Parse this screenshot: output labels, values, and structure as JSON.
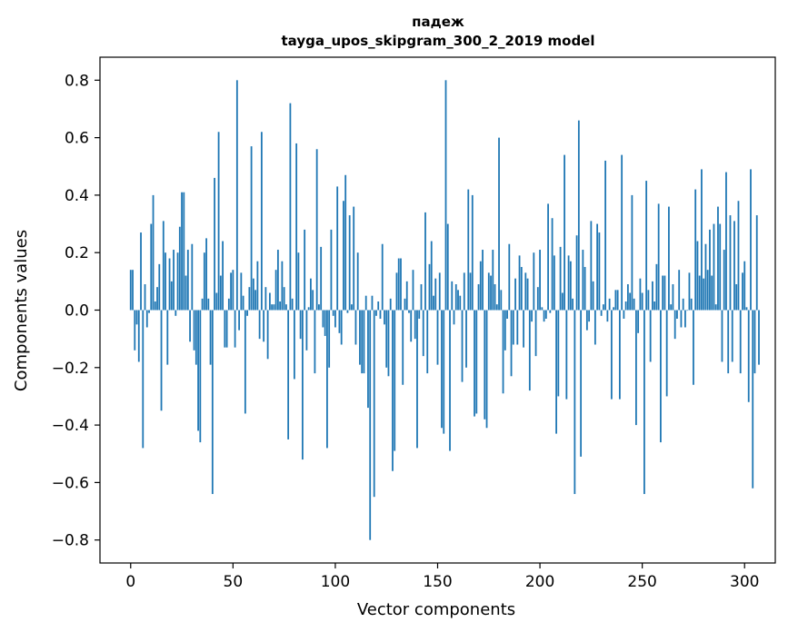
{
  "chart_data": {
    "type": "bar",
    "title": "падеж",
    "subtitle": "tayga_upos_skipgram_300_2_2019 model",
    "xlabel": "Vector components",
    "ylabel": "Components values",
    "xlim": [
      -15,
      315
    ],
    "ylim": [
      -0.88,
      0.88
    ],
    "xticks": [
      0,
      50,
      100,
      150,
      200,
      250,
      300
    ],
    "xtick_labels": [
      "0",
      "50",
      "100",
      "150",
      "200",
      "250",
      "300"
    ],
    "yticks": [
      -0.8,
      -0.6,
      -0.4,
      -0.2,
      0.0,
      0.2,
      0.4,
      0.6,
      0.8
    ],
    "ytick_labels": [
      "−0.8",
      "−0.6",
      "−0.4",
      "−0.2",
      "0.0",
      "0.2",
      "0.4",
      "0.6",
      "0.8"
    ],
    "bar_color": "#1f77b4",
    "values": [
      0.14,
      0.14,
      -0.14,
      -0.05,
      -0.18,
      0.27,
      -0.48,
      0.09,
      -0.06,
      -0.01,
      0.3,
      0.4,
      0.03,
      0.08,
      0.16,
      -0.35,
      0.31,
      0.2,
      -0.19,
      0.18,
      0.1,
      0.21,
      -0.02,
      0.2,
      0.29,
      0.41,
      0.41,
      0.12,
      0.21,
      -0.11,
      0.23,
      -0.14,
      -0.19,
      -0.42,
      -0.46,
      0.04,
      0.2,
      0.25,
      0.04,
      -0.19,
      -0.64,
      0.46,
      0.06,
      0.62,
      0.12,
      0.24,
      -0.13,
      -0.13,
      0.04,
      0.13,
      0.14,
      -0.13,
      0.8,
      -0.07,
      0.13,
      0.05,
      -0.36,
      -0.02,
      0.08,
      0.57,
      0.11,
      0.07,
      0.17,
      -0.1,
      0.62,
      -0.11,
      0.08,
      -0.17,
      0.06,
      0.02,
      0.02,
      0.14,
      0.21,
      0.03,
      0.17,
      0.08,
      0.02,
      -0.45,
      0.72,
      0.04,
      -0.24,
      0.58,
      0.2,
      -0.1,
      -0.52,
      0.28,
      -0.14,
      0.01,
      0.11,
      0.07,
      -0.22,
      0.56,
      0.02,
      0.22,
      -0.06,
      -0.09,
      -0.48,
      -0.2,
      0.28,
      -0.02,
      -0.06,
      0.43,
      -0.08,
      -0.12,
      0.38,
      0.47,
      -0.01,
      0.33,
      0.02,
      0.36,
      -0.12,
      0.2,
      -0.19,
      -0.22,
      -0.22,
      0.05,
      -0.34,
      -0.8,
      0.05,
      -0.65,
      -0.02,
      0.03,
      -0.03,
      0.23,
      -0.05,
      -0.2,
      -0.23,
      0.04,
      -0.56,
      -0.49,
      0.13,
      0.18,
      0.18,
      -0.26,
      0.04,
      0.1,
      -0.01,
      -0.11,
      0.14,
      -0.1,
      -0.48,
      -0.03,
      0.09,
      -0.16,
      0.34,
      -0.22,
      0.16,
      0.24,
      0.05,
      0.11,
      -0.19,
      0.13,
      -0.41,
      -0.43,
      0.8,
      0.3,
      -0.49,
      0.1,
      -0.05,
      0.09,
      0.07,
      0.05,
      -0.25,
      0.13,
      -0.2,
      0.42,
      0.13,
      0.4,
      -0.37,
      -0.36,
      0.09,
      0.17,
      0.21,
      -0.38,
      -0.41,
      0.13,
      0.12,
      0.21,
      0.09,
      0.02,
      0.6,
      0.07,
      -0.29,
      -0.14,
      -0.03,
      0.23,
      -0.23,
      -0.12,
      0.11,
      -0.12,
      0.19,
      0.15,
      -0.13,
      0.13,
      0.11,
      -0.28,
      -0.04,
      0.2,
      -0.16,
      0.08,
      0.21,
      0.01,
      -0.04,
      -0.03,
      0.37,
      -0.01,
      0.32,
      0.19,
      -0.43,
      -0.3,
      0.22,
      0.06,
      0.54,
      -0.31,
      0.19,
      0.17,
      0.04,
      -0.64,
      0.26,
      0.66,
      -0.51,
      0.21,
      0.15,
      -0.07,
      -0.04,
      0.31,
      0.1,
      -0.12,
      0.3,
      0.27,
      -0.02,
      0.02,
      0.52,
      -0.04,
      0.04,
      -0.31,
      0.01,
      0.07,
      0.07,
      -0.31,
      0.54,
      -0.03,
      0.03,
      0.09,
      0.06,
      0.4,
      0.04,
      -0.4,
      -0.08,
      0.11,
      0.06,
      -0.64,
      0.45,
      0.07,
      -0.18,
      0.1,
      0.03,
      0.16,
      0.37,
      -0.46,
      0.12,
      0.12,
      -0.3,
      0.36,
      0.02,
      0.09,
      -0.1,
      -0.03,
      0.14,
      -0.06,
      0.04,
      -0.06,
      0.0,
      0.13,
      0.04,
      -0.26,
      0.42,
      0.24,
      0.12,
      0.49,
      0.11,
      0.23,
      0.14,
      0.28,
      0.12,
      0.3,
      0.02,
      0.36,
      0.3,
      -0.18,
      0.21,
      0.48,
      -0.22,
      0.33,
      -0.18,
      0.31,
      0.09,
      0.38,
      -0.22,
      0.13,
      0.17,
      0.01,
      -0.32,
      0.49,
      -0.62,
      -0.22,
      0.33,
      -0.19
    ]
  }
}
